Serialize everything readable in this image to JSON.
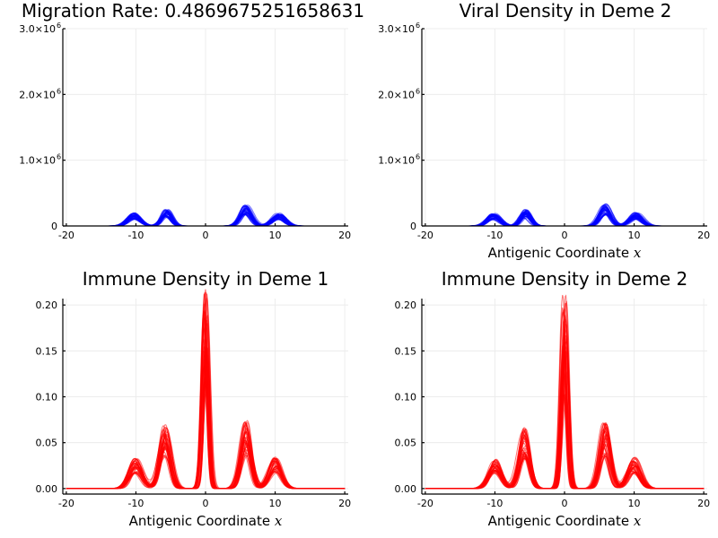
{
  "chart_data": [
    {
      "type": "line",
      "title": "Migration Rate: 0.4869675251658631",
      "xlabel": "",
      "xlim": [
        -20.5,
        20.5
      ],
      "ylim": [
        0,
        3000000
      ],
      "xticks": [
        -20,
        -10,
        0,
        10,
        20
      ],
      "xtick_labels": [
        "-20",
        "-10",
        "0",
        "10",
        "20"
      ],
      "yticks": [
        0,
        1000000,
        2000000,
        3000000
      ],
      "ytick_labels": [
        "0",
        "1.0×10",
        "2.0×10",
        "3.0×10"
      ],
      "ytick_exponents": [
        "",
        "6",
        "6",
        "6"
      ],
      "color": "#0000ff",
      "grid": true,
      "peaks": [
        {
          "center": -10.3,
          "height": 180000,
          "width": 0.9
        },
        {
          "center": -5.6,
          "height": 240000,
          "width": 0.7
        },
        {
          "center": 5.8,
          "height": 280000,
          "width": 0.8
        },
        {
          "center": 10.5,
          "height": 170000,
          "width": 0.9
        }
      ]
    },
    {
      "type": "line",
      "title": "Viral Density in Deme 2",
      "xlabel": "Antigenic Coordinate ",
      "xlabel_var": "x",
      "xlim": [
        -20.5,
        20.5
      ],
      "ylim": [
        0,
        3000000
      ],
      "xticks": [
        -20,
        -10,
        0,
        10,
        20
      ],
      "xtick_labels": [
        "-20",
        "-10",
        "0",
        "10",
        "20"
      ],
      "yticks": [
        0,
        1000000,
        2000000,
        3000000
      ],
      "ytick_labels": [
        "0",
        "1.0×10",
        "2.0×10",
        "3.0×10"
      ],
      "ytick_exponents": [
        "",
        "6",
        "6",
        "6"
      ],
      "color": "#0000ff",
      "grid": true,
      "peaks": [
        {
          "center": -10.2,
          "height": 170000,
          "width": 0.9
        },
        {
          "center": -5.6,
          "height": 220000,
          "width": 0.7
        },
        {
          "center": 5.8,
          "height": 300000,
          "width": 0.8
        },
        {
          "center": 10.3,
          "height": 180000,
          "width": 0.9
        }
      ]
    },
    {
      "type": "line",
      "title": "Immune Density in Deme 1",
      "xlabel": "Antigenic Coordinate ",
      "xlabel_var": "x",
      "xlim": [
        -20.5,
        20.5
      ],
      "ylim": [
        -0.006,
        0.207
      ],
      "xticks": [
        -20,
        -10,
        0,
        10,
        20
      ],
      "xtick_labels": [
        "-20",
        "-10",
        "0",
        "10",
        "20"
      ],
      "yticks": [
        0,
        0.05,
        0.1,
        0.15,
        0.2
      ],
      "ytick_labels": [
        "0.00",
        "0.05",
        "0.10",
        "0.15",
        "0.20"
      ],
      "ytick_exponents": [
        "",
        "",
        "",
        "",
        ""
      ],
      "color": "#ff0000",
      "grid": true,
      "peaks": [
        {
          "center": -10,
          "height": 0.03,
          "width": 0.9
        },
        {
          "center": -5.8,
          "height": 0.062,
          "width": 0.75
        },
        {
          "center": 0,
          "height": 0.19,
          "width": 0.45
        },
        {
          "center": 5.8,
          "height": 0.065,
          "width": 0.75
        },
        {
          "center": 10,
          "height": 0.03,
          "width": 0.9
        }
      ]
    },
    {
      "type": "line",
      "title": "Immune Density in Deme 2",
      "xlabel": "Antigenic Coordinate ",
      "xlabel_var": "x",
      "xlim": [
        -20.5,
        20.5
      ],
      "ylim": [
        -0.006,
        0.207
      ],
      "xticks": [
        -20,
        -10,
        0,
        10,
        20
      ],
      "xtick_labels": [
        "-20",
        "-10",
        "0",
        "10",
        "20"
      ],
      "yticks": [
        0,
        0.05,
        0.1,
        0.15,
        0.2
      ],
      "ytick_labels": [
        "0.00",
        "0.05",
        "0.10",
        "0.15",
        "0.20"
      ],
      "ytick_exponents": [
        "",
        "",
        "",
        "",
        ""
      ],
      "color": "#ff0000",
      "grid": true,
      "peaks": [
        {
          "center": -10,
          "height": 0.028,
          "width": 0.9
        },
        {
          "center": -5.8,
          "height": 0.058,
          "width": 0.75
        },
        {
          "center": 0,
          "height": 0.185,
          "width": 0.45
        },
        {
          "center": 5.8,
          "height": 0.063,
          "width": 0.75
        },
        {
          "center": 10,
          "height": 0.03,
          "width": 0.9
        }
      ]
    }
  ]
}
